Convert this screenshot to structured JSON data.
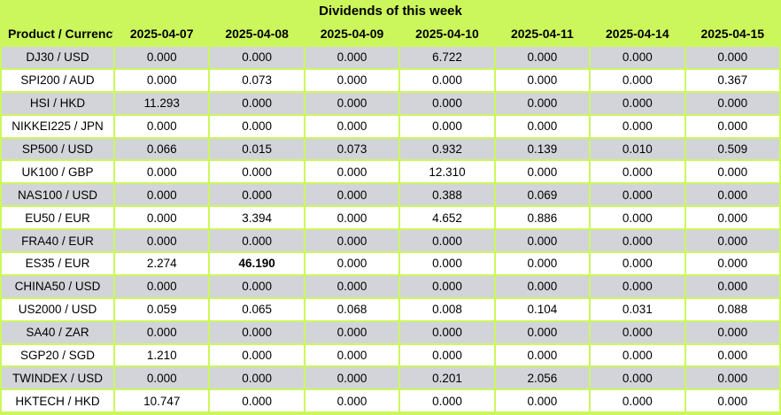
{
  "title": "Dividends of this week",
  "colors": {
    "background_green": "#ccf75c",
    "row_alt_gray": "#d3d4da",
    "row_white": "#ffffff",
    "text": "#000000"
  },
  "chart_data": {
    "type": "table",
    "title": "Dividends of this week",
    "product_header": "Product / Currency",
    "date_headers": [
      "2025-04-07",
      "2025-04-08",
      "2025-04-09",
      "2025-04-10",
      "2025-04-11",
      "2025-04-14",
      "2025-04-15"
    ],
    "rows": [
      {
        "product": "DJ30 / USD",
        "values": [
          "0.000",
          "0.000",
          "0.000",
          "6.722",
          "0.000",
          "0.000",
          "0.000"
        ]
      },
      {
        "product": "SPI200 / AUD",
        "values": [
          "0.000",
          "0.073",
          "0.000",
          "0.000",
          "0.000",
          "0.000",
          "0.367"
        ]
      },
      {
        "product": "HSI / HKD",
        "values": [
          "11.293",
          "0.000",
          "0.000",
          "0.000",
          "0.000",
          "0.000",
          "0.000"
        ]
      },
      {
        "product": "NIKKEI225 / JPN",
        "values": [
          "0.000",
          "0.000",
          "0.000",
          "0.000",
          "0.000",
          "0.000",
          "0.000"
        ]
      },
      {
        "product": "SP500 / USD",
        "values": [
          "0.066",
          "0.015",
          "0.073",
          "0.932",
          "0.139",
          "0.010",
          "0.509"
        ]
      },
      {
        "product": "UK100 / GBP",
        "values": [
          "0.000",
          "0.000",
          "0.000",
          "12.310",
          "0.000",
          "0.000",
          "0.000"
        ]
      },
      {
        "product": "NAS100 / USD",
        "values": [
          "0.000",
          "0.000",
          "0.000",
          "0.388",
          "0.069",
          "0.000",
          "0.000"
        ]
      },
      {
        "product": "EU50 / EUR",
        "values": [
          "0.000",
          "3.394",
          "0.000",
          "4.652",
          "0.886",
          "0.000",
          "0.000"
        ]
      },
      {
        "product": "FRA40 / EUR",
        "values": [
          "0.000",
          "0.000",
          "0.000",
          "0.000",
          "0.000",
          "0.000",
          "0.000"
        ]
      },
      {
        "product": "ES35 / EUR",
        "values": [
          "2.274",
          "46.190",
          "0.000",
          "0.000",
          "0.000",
          "0.000",
          "0.000"
        ],
        "bold_index": 1
      },
      {
        "product": "CHINA50 / USD",
        "values": [
          "0.000",
          "0.000",
          "0.000",
          "0.000",
          "0.000",
          "0.000",
          "0.000"
        ]
      },
      {
        "product": "US2000 / USD",
        "values": [
          "0.059",
          "0.065",
          "0.068",
          "0.008",
          "0.104",
          "0.031",
          "0.088"
        ]
      },
      {
        "product": "SA40 / ZAR",
        "values": [
          "0.000",
          "0.000",
          "0.000",
          "0.000",
          "0.000",
          "0.000",
          "0.000"
        ]
      },
      {
        "product": "SGP20 / SGD",
        "values": [
          "1.210",
          "0.000",
          "0.000",
          "0.000",
          "0.000",
          "0.000",
          "0.000"
        ]
      },
      {
        "product": "TWINDEX / USD",
        "values": [
          "0.000",
          "0.000",
          "0.000",
          "0.201",
          "2.056",
          "0.000",
          "0.000"
        ]
      },
      {
        "product": "HKTECH / HKD",
        "values": [
          "10.747",
          "0.000",
          "0.000",
          "0.000",
          "0.000",
          "0.000",
          "0.000"
        ]
      }
    ]
  }
}
